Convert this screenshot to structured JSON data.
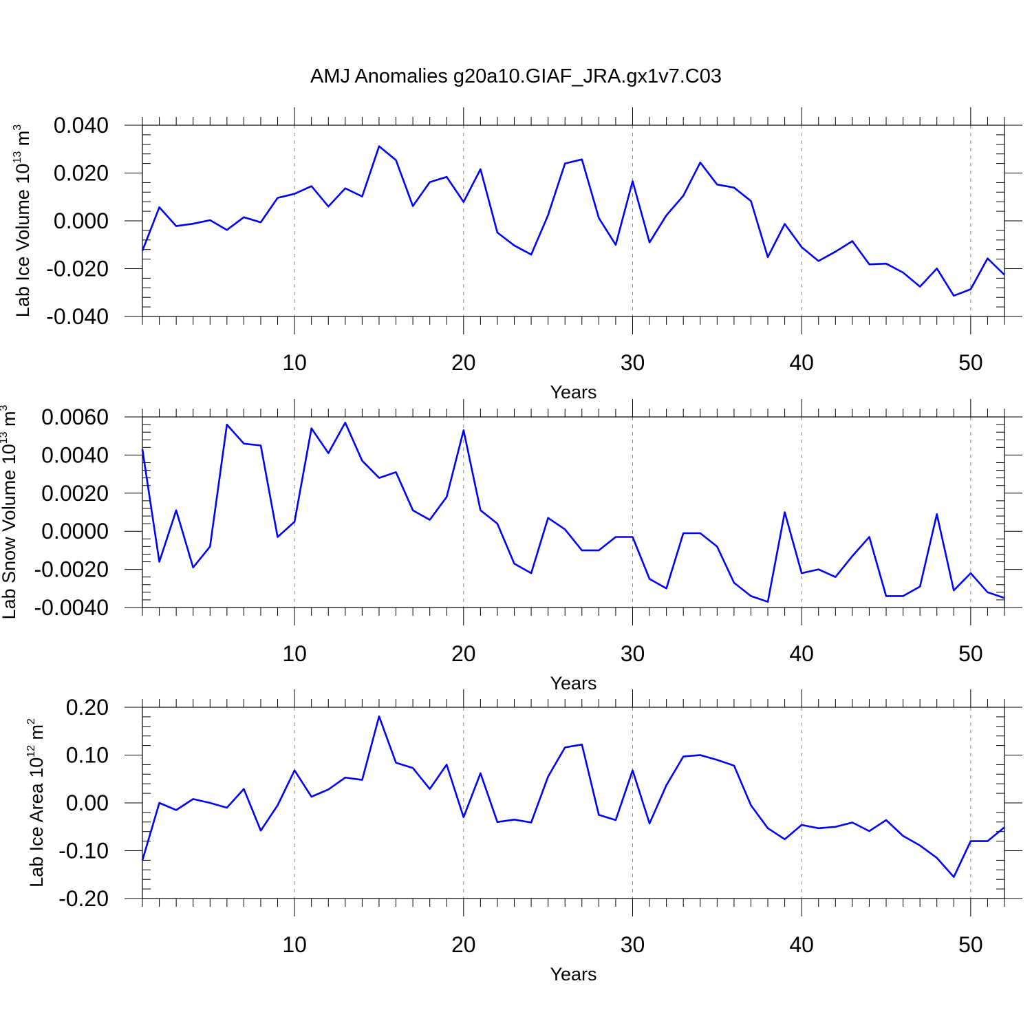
{
  "figure": {
    "title": "AMJ Anomalies g20a10.GIAF_JRA.gx1v7.C03"
  },
  "chart_data": [
    {
      "type": "line",
      "xlabel": "Years",
      "ylabel_text": "Lab Ice Volume 10",
      "ylabel_exp": "13",
      "ylabel_unit": " m",
      "ylabel_unit_exp": "3",
      "xlim": [
        1,
        52
      ],
      "ylim": [
        -0.04,
        0.04
      ],
      "xticks": [
        10,
        20,
        30,
        40,
        50
      ],
      "yticks": [
        -0.04,
        -0.02,
        0,
        0.02,
        0.04
      ],
      "ytick_labels": [
        "-0.040",
        "-0.020",
        "0.000",
        "0.020",
        "0.040"
      ],
      "grid": "dashed vertical at x ticks",
      "line_color": "#0000ff",
      "series": [
        {
          "x": [
            1,
            2,
            3,
            4,
            5,
            6,
            7,
            8,
            9,
            10,
            11,
            12,
            13,
            14,
            15,
            16,
            17,
            18,
            19,
            20,
            21,
            22,
            23,
            24,
            25,
            26,
            27,
            28,
            29,
            30,
            31,
            32,
            33,
            34,
            35,
            36,
            37,
            38,
            39,
            40,
            41,
            42,
            43,
            44,
            45,
            46,
            47,
            48,
            49,
            50,
            51,
            52
          ],
          "y": [
            -0.0125,
            0.0057,
            -0.0022,
            -0.0012,
            0.0003,
            -0.0038,
            0.0015,
            -0.0006,
            0.0096,
            0.0113,
            0.0145,
            0.006,
            0.0136,
            0.0102,
            0.0312,
            0.0254,
            0.0062,
            0.0162,
            0.0184,
            0.0079,
            0.0216,
            -0.0049,
            -0.0103,
            -0.0141,
            0.0024,
            0.024,
            0.0257,
            0.0012,
            -0.01,
            0.0166,
            -0.009,
            0.0023,
            0.0105,
            0.0244,
            0.0152,
            0.0139,
            0.0083,
            -0.0152,
            -0.0013,
            -0.011,
            -0.0168,
            -0.0129,
            -0.0085,
            -0.0182,
            -0.0179,
            -0.0216,
            -0.0275,
            -0.0199,
            -0.0313,
            -0.0286,
            -0.0157,
            -0.0226
          ]
        }
      ]
    },
    {
      "type": "line",
      "xlabel": "Years",
      "ylabel_text": "Lab Snow Volume 10",
      "ylabel_exp": "13",
      "ylabel_unit": " m",
      "ylabel_unit_exp": "3",
      "xlim": [
        1,
        52
      ],
      "ylim": [
        -0.004,
        0.006
      ],
      "xticks": [
        10,
        20,
        30,
        40,
        50
      ],
      "yticks": [
        -0.004,
        -0.002,
        0,
        0.002,
        0.004,
        0.006
      ],
      "ytick_labels": [
        "-0.0040",
        "-0.0020",
        "0.0000",
        "0.0020",
        "0.0040",
        "0.0060"
      ],
      "grid": "dashed vertical at x ticks",
      "line_color": "#0000ff",
      "series": [
        {
          "x": [
            1,
            2,
            3,
            4,
            5,
            6,
            7,
            8,
            9,
            10,
            11,
            12,
            13,
            14,
            15,
            16,
            17,
            18,
            19,
            20,
            21,
            22,
            23,
            24,
            25,
            26,
            27,
            28,
            29,
            30,
            31,
            32,
            33,
            34,
            35,
            36,
            37,
            38,
            39,
            40,
            41,
            42,
            43,
            44,
            45,
            46,
            47,
            48,
            49,
            50,
            51,
            52
          ],
          "y": [
            0.0043,
            -0.0016,
            0.0011,
            -0.0019,
            -0.0008,
            0.0056,
            0.0046,
            0.0045,
            -0.0003,
            0.0005,
            0.0054,
            0.0041,
            0.0057,
            0.0037,
            0.0028,
            0.0031,
            0.0011,
            0.0006,
            0.0018,
            0.0053,
            0.0011,
            0.0004,
            -0.0017,
            -0.0022,
            0.0007,
            0.0001,
            -0.001,
            -0.001,
            -0.0003,
            -0.0003,
            -0.0025,
            -0.003,
            -0.0001,
            -0.0001,
            -0.0008,
            -0.0027,
            -0.0034,
            -0.0037,
            0.001,
            -0.0022,
            -0.002,
            -0.0024,
            -0.0013,
            -0.0003,
            -0.0034,
            -0.0034,
            -0.0029,
            0.0009,
            -0.0031,
            -0.0022,
            -0.0032,
            -0.0035
          ]
        }
      ]
    },
    {
      "type": "line",
      "xlabel": "Years",
      "ylabel_text": "Lab Ice Area 10",
      "ylabel_exp": "12",
      "ylabel_unit": " m",
      "ylabel_unit_exp": "2",
      "xlim": [
        1,
        52
      ],
      "ylim": [
        -0.2,
        0.2
      ],
      "xticks": [
        10,
        20,
        30,
        40,
        50
      ],
      "yticks": [
        -0.2,
        -0.1,
        0,
        0.1,
        0.2
      ],
      "ytick_labels": [
        "-0.20",
        "-0.10",
        "0.00",
        "0.10",
        "0.20"
      ],
      "grid": "dashed vertical at x ticks",
      "line_color": "#0000ff",
      "series": [
        {
          "x": [
            1,
            2,
            3,
            4,
            5,
            6,
            7,
            8,
            9,
            10,
            11,
            12,
            13,
            14,
            15,
            16,
            17,
            18,
            19,
            20,
            21,
            22,
            23,
            24,
            25,
            26,
            27,
            28,
            29,
            30,
            31,
            32,
            33,
            34,
            35,
            36,
            37,
            38,
            39,
            40,
            41,
            42,
            43,
            44,
            45,
            46,
            47,
            48,
            49,
            50,
            51,
            52
          ],
          "y": [
            -0.12,
            0.0,
            -0.015,
            0.008,
            0.0,
            -0.01,
            0.029,
            -0.058,
            -0.005,
            0.068,
            0.013,
            0.028,
            0.053,
            0.048,
            0.181,
            0.084,
            0.073,
            0.029,
            0.08,
            -0.03,
            0.062,
            -0.04,
            -0.035,
            -0.041,
            0.055,
            0.116,
            0.122,
            -0.025,
            -0.036,
            0.068,
            -0.043,
            0.037,
            0.097,
            0.1,
            0.09,
            0.078,
            -0.005,
            -0.053,
            -0.076,
            -0.046,
            -0.053,
            -0.05,
            -0.041,
            -0.059,
            -0.036,
            -0.069,
            -0.089,
            -0.115,
            -0.155,
            -0.08,
            -0.08,
            -0.051
          ]
        }
      ]
    }
  ]
}
